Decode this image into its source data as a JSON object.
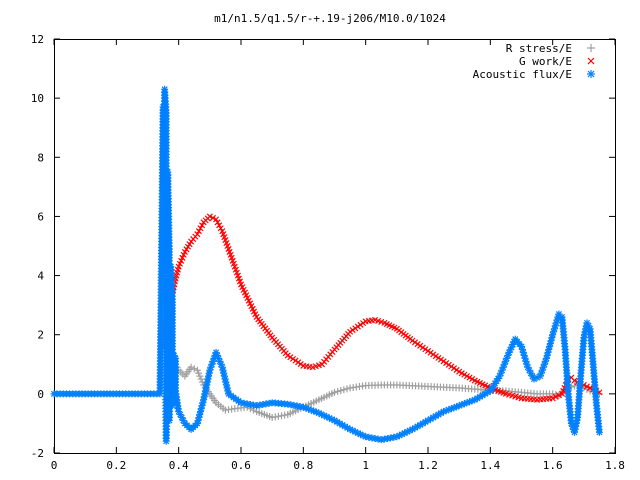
{
  "chart_data": {
    "type": "scatter",
    "title": "m1/n1.5/q1.5/r-+.19-j206/M10.0/1024",
    "xlabel": "",
    "ylabel": "",
    "xlim": [
      0,
      1.8
    ],
    "ylim": [
      -2,
      12
    ],
    "xticks": [
      "0",
      "0.2",
      "0.4",
      "0.6",
      "0.8",
      "1",
      "1.2",
      "1.4",
      "1.6",
      "1.8"
    ],
    "yticks": [
      "-2",
      "0",
      "2",
      "4",
      "6",
      "8",
      "10",
      "12"
    ],
    "grid": false,
    "legend_position": "top-right",
    "series": [
      {
        "name": "R stress/E",
        "marker": "plus",
        "color": "#a0a0a0",
        "points": [
          [
            0.355,
            0.5
          ],
          [
            0.36,
            -1.4
          ],
          [
            0.365,
            -0.7
          ],
          [
            0.37,
            -0.6
          ],
          [
            0.375,
            0.2
          ],
          [
            0.38,
            0.8
          ],
          [
            0.39,
            1.0
          ],
          [
            0.4,
            0.8
          ],
          [
            0.42,
            0.6
          ],
          [
            0.44,
            0.9
          ],
          [
            0.46,
            0.8
          ],
          [
            0.48,
            0.3
          ],
          [
            0.5,
            0.0
          ],
          [
            0.52,
            -0.3
          ],
          [
            0.55,
            -0.55
          ],
          [
            0.58,
            -0.5
          ],
          [
            0.62,
            -0.45
          ],
          [
            0.65,
            -0.6
          ],
          [
            0.7,
            -0.8
          ],
          [
            0.75,
            -0.7
          ],
          [
            0.8,
            -0.45
          ],
          [
            0.85,
            -0.2
          ],
          [
            0.9,
            0.05
          ],
          [
            0.95,
            0.2
          ],
          [
            1.0,
            0.28
          ],
          [
            1.05,
            0.3
          ],
          [
            1.1,
            0.3
          ],
          [
            1.2,
            0.25
          ],
          [
            1.3,
            0.2
          ],
          [
            1.4,
            0.12
          ],
          [
            1.45,
            0.1
          ],
          [
            1.5,
            0.05
          ],
          [
            1.55,
            0.0
          ],
          [
            1.6,
            0.0
          ],
          [
            1.62,
            -0.05
          ],
          [
            1.65,
            0.2
          ],
          [
            1.68,
            0.3
          ],
          [
            1.7,
            0.2
          ],
          [
            1.72,
            0.1
          ],
          [
            1.75,
            0.0
          ]
        ]
      },
      {
        "name": "G work/E",
        "marker": "cross",
        "color": "#ff0000",
        "points": [
          [
            0.355,
            1.6
          ],
          [
            0.36,
            2.4
          ],
          [
            0.365,
            2.9
          ],
          [
            0.37,
            3.1
          ],
          [
            0.38,
            3.4
          ],
          [
            0.39,
            3.9
          ],
          [
            0.4,
            4.3
          ],
          [
            0.42,
            4.8
          ],
          [
            0.44,
            5.15
          ],
          [
            0.46,
            5.4
          ],
          [
            0.48,
            5.8
          ],
          [
            0.5,
            6.0
          ],
          [
            0.52,
            5.9
          ],
          [
            0.54,
            5.5
          ],
          [
            0.56,
            4.9
          ],
          [
            0.58,
            4.3
          ],
          [
            0.6,
            3.7
          ],
          [
            0.65,
            2.6
          ],
          [
            0.7,
            1.9
          ],
          [
            0.75,
            1.3
          ],
          [
            0.8,
            0.95
          ],
          [
            0.83,
            0.9
          ],
          [
            0.86,
            1.0
          ],
          [
            0.9,
            1.5
          ],
          [
            0.95,
            2.1
          ],
          [
            1.0,
            2.45
          ],
          [
            1.03,
            2.5
          ],
          [
            1.06,
            2.4
          ],
          [
            1.1,
            2.2
          ],
          [
            1.15,
            1.8
          ],
          [
            1.2,
            1.45
          ],
          [
            1.25,
            1.1
          ],
          [
            1.3,
            0.75
          ],
          [
            1.35,
            0.45
          ],
          [
            1.4,
            0.2
          ],
          [
            1.45,
            0.0
          ],
          [
            1.5,
            -0.15
          ],
          [
            1.55,
            -0.2
          ],
          [
            1.6,
            -0.15
          ],
          [
            1.63,
            0.0
          ],
          [
            1.65,
            0.5
          ],
          [
            1.66,
            0.55
          ],
          [
            1.67,
            0.45
          ],
          [
            1.7,
            0.3
          ],
          [
            1.73,
            0.15
          ],
          [
            1.75,
            0.05
          ]
        ]
      },
      {
        "name": "Acoustic flux/E",
        "marker": "star",
        "color": "#0080ff",
        "points": [
          [
            0.0,
            0.0
          ],
          [
            0.05,
            0.0
          ],
          [
            0.1,
            0.0
          ],
          [
            0.15,
            0.0
          ],
          [
            0.2,
            0.0
          ],
          [
            0.25,
            0.0
          ],
          [
            0.3,
            0.0
          ],
          [
            0.34,
            0.0
          ],
          [
            0.35,
            9.7
          ],
          [
            0.355,
            10.3
          ],
          [
            0.36,
            9.5
          ],
          [
            0.35,
            6.8
          ],
          [
            0.36,
            6.8
          ],
          [
            0.365,
            7.5
          ],
          [
            0.37,
            4.9
          ],
          [
            0.375,
            4.3
          ],
          [
            0.38,
            3.2
          ],
          [
            0.37,
            3.0
          ],
          [
            0.38,
            2.3
          ],
          [
            0.385,
            1.3
          ],
          [
            0.39,
            1.2
          ],
          [
            0.36,
            -1.6
          ],
          [
            0.37,
            -0.9
          ],
          [
            0.38,
            -0.4
          ],
          [
            0.39,
            0.1
          ],
          [
            0.4,
            -0.6
          ],
          [
            0.42,
            -1.0
          ],
          [
            0.44,
            -1.2
          ],
          [
            0.46,
            -1.0
          ],
          [
            0.48,
            -0.2
          ],
          [
            0.5,
            0.8
          ],
          [
            0.52,
            1.4
          ],
          [
            0.54,
            0.9
          ],
          [
            0.56,
            0.0
          ],
          [
            0.6,
            -0.3
          ],
          [
            0.65,
            -0.4
          ],
          [
            0.7,
            -0.3
          ],
          [
            0.75,
            -0.35
          ],
          [
            0.8,
            -0.45
          ],
          [
            0.85,
            -0.65
          ],
          [
            0.9,
            -0.9
          ],
          [
            0.95,
            -1.2
          ],
          [
            1.0,
            -1.45
          ],
          [
            1.05,
            -1.55
          ],
          [
            1.1,
            -1.45
          ],
          [
            1.15,
            -1.2
          ],
          [
            1.2,
            -0.9
          ],
          [
            1.25,
            -0.6
          ],
          [
            1.3,
            -0.4
          ],
          [
            1.35,
            -0.2
          ],
          [
            1.4,
            0.1
          ],
          [
            1.43,
            0.6
          ],
          [
            1.46,
            1.4
          ],
          [
            1.48,
            1.85
          ],
          [
            1.5,
            1.6
          ],
          [
            1.52,
            0.9
          ],
          [
            1.54,
            0.5
          ],
          [
            1.56,
            0.6
          ],
          [
            1.58,
            1.2
          ],
          [
            1.6,
            2.0
          ],
          [
            1.62,
            2.7
          ],
          [
            1.63,
            2.6
          ],
          [
            1.64,
            1.5
          ],
          [
            1.65,
            0.0
          ],
          [
            1.66,
            -1.0
          ],
          [
            1.67,
            -1.3
          ],
          [
            1.68,
            -0.8
          ],
          [
            1.69,
            0.6
          ],
          [
            1.7,
            1.9
          ],
          [
            1.71,
            2.4
          ],
          [
            1.72,
            2.2
          ],
          [
            1.73,
            1.0
          ],
          [
            1.74,
            -0.3
          ],
          [
            1.75,
            -1.3
          ]
        ]
      }
    ]
  }
}
